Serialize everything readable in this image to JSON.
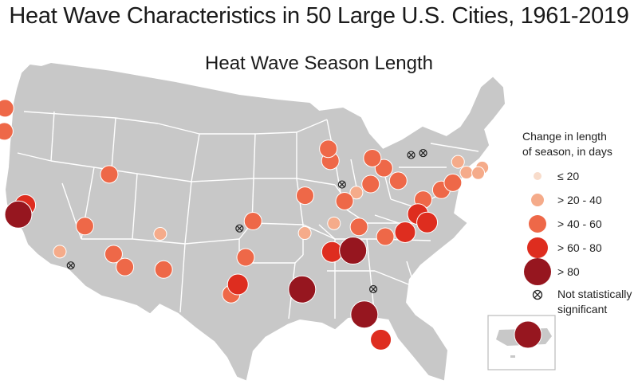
{
  "title": "Heat Wave Characteristics in 50 Large U.S. Cities, 1961-2019",
  "subtitle": "Heat Wave Season Length",
  "legend": {
    "title_line1": "Change in length",
    "title_line2": "of season, in days",
    "classes": [
      {
        "label": "≤ 20",
        "color": "#f8dccb",
        "radius": 5
      },
      {
        "label": "> 20 - 40",
        "color": "#f5ab8a",
        "radius": 8
      },
      {
        "label": "> 40 - 60",
        "color": "#ee6848",
        "radius": 11
      },
      {
        "label": "> 60 - 80",
        "color": "#de2d1f",
        "radius": 13
      },
      {
        "label": "> 80",
        "color": "#96161f",
        "radius": 17
      }
    ],
    "not_significant_line1": "Not statistically",
    "not_significant_line2": "significant"
  },
  "colors": {
    "land": "#c8c8c8",
    "state_border": "#ffffff",
    "marker_outline": "#ffffff",
    "not_significant_stroke": "#222222"
  },
  "cities": [
    {
      "name": "Seattle",
      "class": 3,
      "lat": 47.6,
      "lon": -122.3
    },
    {
      "name": "Portland",
      "class": 3,
      "lat": 45.5,
      "lon": -122.7
    },
    {
      "name": "San Francisco",
      "class": 5,
      "lat": 37.8,
      "lon": -122.4
    },
    {
      "name": "Sacramento",
      "class": 4,
      "lat": 38.6,
      "lon": -121.5
    },
    {
      "name": "Los Angeles",
      "class": 2,
      "lat": 34.05,
      "lon": -118.25
    },
    {
      "name": "Las Vegas",
      "class": 3,
      "lat": 36.2,
      "lon": -115.1
    },
    {
      "name": "Salt Lake City",
      "class": 3,
      "lat": 40.8,
      "lon": -111.9
    },
    {
      "name": "Phoenix",
      "class": 3,
      "lat": 33.45,
      "lon": -112.1
    },
    {
      "name": "Tucson",
      "class": 3,
      "lat": 32.2,
      "lon": -110.9
    },
    {
      "name": "Albuquerque",
      "class": 2,
      "lat": 35.1,
      "lon": -106.6
    },
    {
      "name": "El Paso",
      "class": 3,
      "lat": 31.8,
      "lon": -106.4
    },
    {
      "name": "Tulsa",
      "class": 3,
      "lat": 36.15,
      "lon": -95.99
    },
    {
      "name": "Dallas",
      "class": 3,
      "lat": 32.8,
      "lon": -96.8
    },
    {
      "name": "Austin",
      "class": 4,
      "lat": 30.3,
      "lon": -97.7
    },
    {
      "name": "San Antonio",
      "class": 3,
      "lat": 29.4,
      "lon": -98.5
    },
    {
      "name": "New Orleans",
      "class": 5,
      "lat": 29.95,
      "lon": -90.07
    },
    {
      "name": "St. Louis",
      "class": 3,
      "lat": 38.6,
      "lon": -90.2
    },
    {
      "name": "Memphis",
      "class": 2,
      "lat": 35.15,
      "lon": -90.05
    },
    {
      "name": "Chicago",
      "class": 3,
      "lat": 41.9,
      "lon": -87.6
    },
    {
      "name": "Milwaukee",
      "class": 3,
      "lat": 43.0,
      "lon": -87.9
    },
    {
      "name": "Louisville",
      "class": 3,
      "lat": 38.25,
      "lon": -85.75
    },
    {
      "name": "Cincinnati",
      "class": 2,
      "lat": 39.1,
      "lon": -84.5
    },
    {
      "name": "Columbus",
      "class": 3,
      "lat": 39.96,
      "lon": -83.0
    },
    {
      "name": "Cleveland",
      "class": 3,
      "lat": 41.5,
      "lon": -81.7
    },
    {
      "name": "Detroit",
      "class": 3,
      "lat": 42.35,
      "lon": -83.05
    },
    {
      "name": "Pittsburgh",
      "class": 3,
      "lat": 40.44,
      "lon": -80.0
    },
    {
      "name": "Nashville",
      "class": 2,
      "lat": 36.16,
      "lon": -86.78
    },
    {
      "name": "Knoxville",
      "class": 3,
      "lat": 35.96,
      "lon": -83.92
    },
    {
      "name": "Charlotte",
      "class": 3,
      "lat": 35.23,
      "lon": -80.84
    },
    {
      "name": "Raleigh",
      "class": 4,
      "lat": 35.78,
      "lon": -78.64
    },
    {
      "name": "Richmond",
      "class": 4,
      "lat": 37.54,
      "lon": -77.43
    },
    {
      "name": "Norfolk",
      "class": 4,
      "lat": 36.85,
      "lon": -76.29
    },
    {
      "name": "Washington",
      "class": 3,
      "lat": 38.9,
      "lon": -77.03
    },
    {
      "name": "Philadelphia",
      "class": 3,
      "lat": 39.95,
      "lon": -75.16
    },
    {
      "name": "New York",
      "class": 3,
      "lat": 40.7,
      "lon": -74.0
    },
    {
      "name": "Hartford",
      "class": 2,
      "lat": 41.76,
      "lon": -72.68
    },
    {
      "name": "Boston",
      "class": 2,
      "lat": 42.36,
      "lon": -71.06
    },
    {
      "name": "Providence",
      "class": 2,
      "lat": 41.82,
      "lon": -71.41
    },
    {
      "name": "Albany",
      "class": 2,
      "lat": 42.65,
      "lon": -73.75
    },
    {
      "name": "Birmingham",
      "class": 4,
      "lat": 33.52,
      "lon": -86.8
    },
    {
      "name": "Atlanta",
      "class": 5,
      "lat": 33.75,
      "lon": -84.39
    },
    {
      "name": "Tampa",
      "class": 5,
      "lat": 27.95,
      "lon": -82.46
    },
    {
      "name": "Miami",
      "class": 4,
      "lat": 25.76,
      "lon": -80.19
    },
    {
      "name": "San Juan",
      "class": 5,
      "inset": true
    },
    {
      "name": "San Diego",
      "class": 0,
      "lat": 32.7,
      "lon": -117.16
    },
    {
      "name": "Oklahoma City",
      "class": 0,
      "lat": 35.47,
      "lon": -97.52
    },
    {
      "name": "Indianapolis",
      "class": 0,
      "lat": 39.77,
      "lon": -86.16
    },
    {
      "name": "Buffalo",
      "class": 0,
      "lat": 42.89,
      "lon": -78.88
    },
    {
      "name": "Rochester",
      "class": 0,
      "lat": 43.16,
      "lon": -77.61
    },
    {
      "name": "Jacksonville",
      "class": 0,
      "lat": 30.33,
      "lon": -81.66
    }
  ]
}
